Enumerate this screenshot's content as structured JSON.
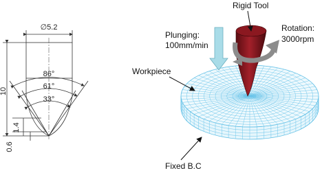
{
  "drawing": {
    "diameter": "∅5.2",
    "angles": [
      "86°",
      "61°",
      "33°"
    ],
    "height": "10",
    "cone_height": "1.4",
    "tip_height": "0.6"
  },
  "labels": {
    "tool": "Rigid Tool",
    "plunging": "Plunging:",
    "plunge_rate": "100mm/min",
    "rotation": "Rotation:",
    "rotation_rate": "3000rpm",
    "workpiece": "Workpiece",
    "boundary": "Fixed B.C"
  }
}
